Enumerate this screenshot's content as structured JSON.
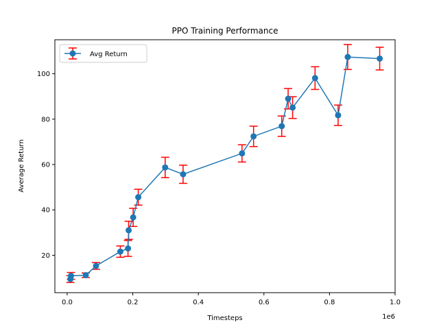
{
  "chart_data": {
    "type": "line",
    "title": "PPO Training Performance",
    "xlabel": "Timesteps",
    "ylabel": "Average Return",
    "x_offset_label": "1e6",
    "xlim": [
      -0.0375,
      1.0
    ],
    "ylim": [
      3.5,
      115
    ],
    "x_ticks": [
      0.0,
      0.2,
      0.4,
      0.6,
      0.8,
      1.0
    ],
    "x_tick_labels": [
      "0.0",
      "0.2",
      "0.4",
      "0.6",
      "0.8",
      "1.0"
    ],
    "y_ticks": [
      20,
      40,
      60,
      80,
      100
    ],
    "y_tick_labels": [
      "20",
      "40",
      "60",
      "80",
      "100"
    ],
    "grid": false,
    "legend": "top-left",
    "series": [
      {
        "name": "Avg Return",
        "color": "#1f77b4",
        "error_color": "#ff0000",
        "marker": "circle",
        "x": [
          0.0098,
          0.0117,
          0.0566,
          0.0879,
          0.1621,
          0.1855,
          0.1875,
          0.2012,
          0.2168,
          0.2988,
          0.3535,
          0.5332,
          0.5684,
          0.6543,
          0.6738,
          0.6875,
          0.7559,
          0.8262,
          0.8555,
          0.9531
        ],
        "y": [
          9.5,
          10.9,
          11.2,
          15.3,
          21.6,
          23.0,
          31.0,
          36.7,
          45.6,
          58.7,
          55.7,
          64.9,
          72.4,
          76.9,
          89.0,
          85.1,
          98.1,
          81.7,
          107.4,
          106.7
        ],
        "yerr": [
          1.5,
          1.5,
          1.0,
          1.5,
          2.5,
          3.5,
          4.0,
          4.0,
          3.5,
          4.5,
          4.0,
          3.8,
          4.5,
          4.5,
          4.5,
          4.8,
          5.0,
          4.5,
          5.5,
          5.0
        ]
      }
    ]
  }
}
